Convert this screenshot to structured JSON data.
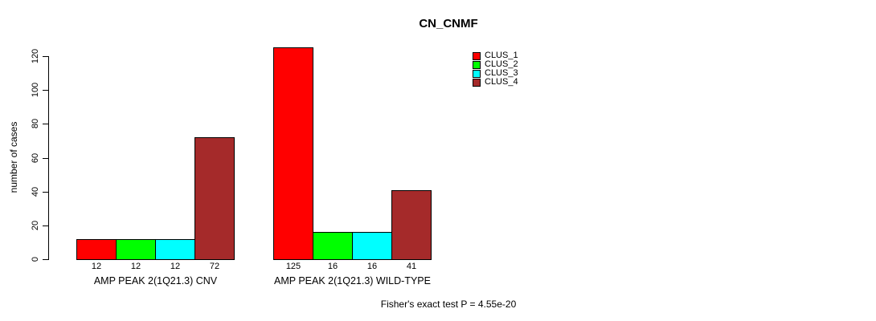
{
  "chart_data": {
    "type": "bar",
    "title": "CN_CNMF",
    "ylabel": "number of cases",
    "ylim": [
      0,
      120
    ],
    "yticks": [
      0,
      20,
      40,
      60,
      80,
      100,
      120
    ],
    "grid": false,
    "legend_position": "top-right",
    "series": [
      {
        "name": "CLUS_1",
        "color": "#FF0000"
      },
      {
        "name": "CLUS_2",
        "color": "#00FF00"
      },
      {
        "name": "CLUS_3",
        "color": "#00FFFF"
      },
      {
        "name": "CLUS_4",
        "color": "#A52A2A"
      }
    ],
    "groups": [
      {
        "label": "AMP PEAK 2(1Q21.3) CNV",
        "values": [
          12,
          12,
          12,
          72
        ]
      },
      {
        "label": "AMP PEAK 2(1Q21.3) WILD-TYPE",
        "values": [
          125,
          16,
          16,
          41
        ]
      }
    ],
    "footnote": "Fisher's exact test P = 4.55e-20"
  }
}
